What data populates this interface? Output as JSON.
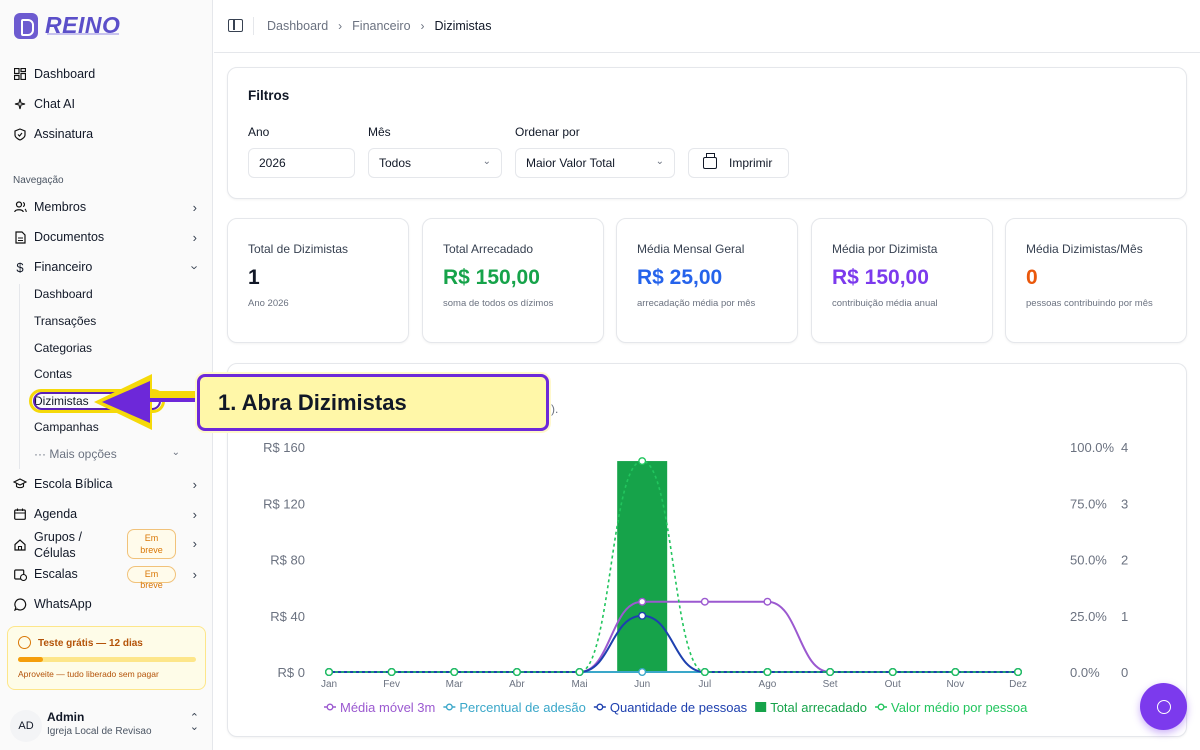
{
  "app": {
    "name": "REINO"
  },
  "sidebar": {
    "top_items": [
      {
        "label": "Dashboard",
        "icon": "grid-icon"
      },
      {
        "label": "Chat AI",
        "icon": "sparkles-icon"
      },
      {
        "label": "Assinatura",
        "icon": "shield-icon"
      }
    ],
    "section_label": "Navegação",
    "nav_items": [
      {
        "label": "Membros",
        "icon": "users-icon"
      },
      {
        "label": "Documentos",
        "icon": "file-icon"
      },
      {
        "label": "Financeiro",
        "icon": "dollar-icon",
        "expanded": true
      },
      {
        "label": "Escola Bíblica",
        "icon": "graduation-cap-icon"
      },
      {
        "label": "Agenda",
        "icon": "calendar-icon"
      },
      {
        "label": "Grupos / Células",
        "icon": "home-icon",
        "badge": "Em breve"
      },
      {
        "label": "Escalas",
        "icon": "calendar-clock-icon",
        "badge": "Em breve"
      },
      {
        "label": "WhatsApp",
        "icon": "whatsapp-icon"
      }
    ],
    "financeiro_sub": [
      "Dashboard",
      "Transações",
      "Categorias",
      "Contas",
      "Dizimistas",
      "Campanhas"
    ],
    "more_options": "··· Mais opções",
    "grupos_line1": "Grupos /",
    "grupos_line2": "Células",
    "badge_em": "Em",
    "badge_breve": "breve",
    "trial": {
      "title": "Teste grátis — 12 dias",
      "note": "Aproveite — tudo liberado sem pagar",
      "progress": 0.14
    },
    "user": {
      "initials": "AD",
      "name": "Admin",
      "org": "Igreja Local de Revisao"
    }
  },
  "header": {
    "breadcrumbs": [
      "Dashboard",
      "Financeiro",
      "Dizimistas"
    ]
  },
  "filters": {
    "title": "Filtros",
    "year": {
      "label": "Ano",
      "value": "2026"
    },
    "month": {
      "label": "Mês",
      "value": "Todos"
    },
    "order": {
      "label": "Ordenar por",
      "value": "Maior Valor Total"
    },
    "print_label": "Imprimir"
  },
  "stats": [
    {
      "label": "Total de Dizimistas",
      "value": "1",
      "sub": "Ano 2026",
      "color": "#111827"
    },
    {
      "label": "Total Arrecadado",
      "value": "R$ 150,00",
      "sub": "soma de todos os dízimos",
      "color": "#16a34a"
    },
    {
      "label": "Média Mensal Geral",
      "value": "R$ 25,00",
      "sub": "arrecadação média por mês",
      "color": "#2563eb"
    },
    {
      "label": "Média por Dizimista",
      "value": "R$ 150,00",
      "sub": "contribuição média anual",
      "color": "#7c3aed"
    },
    {
      "label": "Média Dizimistas/Mês",
      "value": "0",
      "sub": "pessoas contribuindo por mês",
      "color": "#ea580c"
    }
  ],
  "callout": {
    "text": "1. Abra Dizimistas",
    "partial_text": "s)."
  },
  "chart_data": {
    "type": "bar",
    "categories": [
      "Jan",
      "Fev",
      "Mar",
      "Abr",
      "Mai",
      "Jun",
      "Jul",
      "Ago",
      "Set",
      "Out",
      "Nov",
      "Dez"
    ],
    "y_left_ticks": [
      "R$ 160",
      "R$ 120",
      "R$ 80",
      "R$ 40",
      "R$ 0"
    ],
    "y_pct_ticks": [
      "100.0%",
      "75.0%",
      "50.0%",
      "25.0%",
      "0.0%"
    ],
    "y_count_ticks": [
      "4",
      "3",
      "2",
      "1",
      "0"
    ],
    "ylim_left": [
      0,
      160
    ],
    "ylim_pct": [
      0,
      100
    ],
    "ylim_count": [
      0,
      4
    ],
    "legend_position": "bottom",
    "series": [
      {
        "name": "Média móvel 3m",
        "kind": "line",
        "axis": "left",
        "color": "#9b59d0",
        "values": [
          0,
          0,
          0,
          0,
          0,
          50,
          50,
          50,
          0,
          0,
          0,
          0
        ]
      },
      {
        "name": "Percentual de adesão",
        "kind": "line",
        "axis": "pct",
        "color": "#3aa7c9",
        "values": [
          0,
          0,
          0,
          0,
          0,
          0,
          0,
          0,
          0,
          0,
          0,
          0
        ]
      },
      {
        "name": "Quantidade de pessoas",
        "kind": "line",
        "axis": "count",
        "color": "#1e40af",
        "values": [
          0,
          0,
          0,
          0,
          0,
          1,
          0,
          0,
          0,
          0,
          0,
          0
        ]
      },
      {
        "name": "Total arrecadado",
        "kind": "bar",
        "axis": "left",
        "color": "#16a34a",
        "values": [
          0,
          0,
          0,
          0,
          0,
          150,
          0,
          0,
          0,
          0,
          0,
          0
        ]
      },
      {
        "name": "Valor médio por pessoa",
        "kind": "dashed-line",
        "axis": "left",
        "color": "#22c55e",
        "values": [
          0,
          0,
          0,
          0,
          0,
          150,
          0,
          0,
          0,
          0,
          0,
          0
        ]
      }
    ]
  }
}
